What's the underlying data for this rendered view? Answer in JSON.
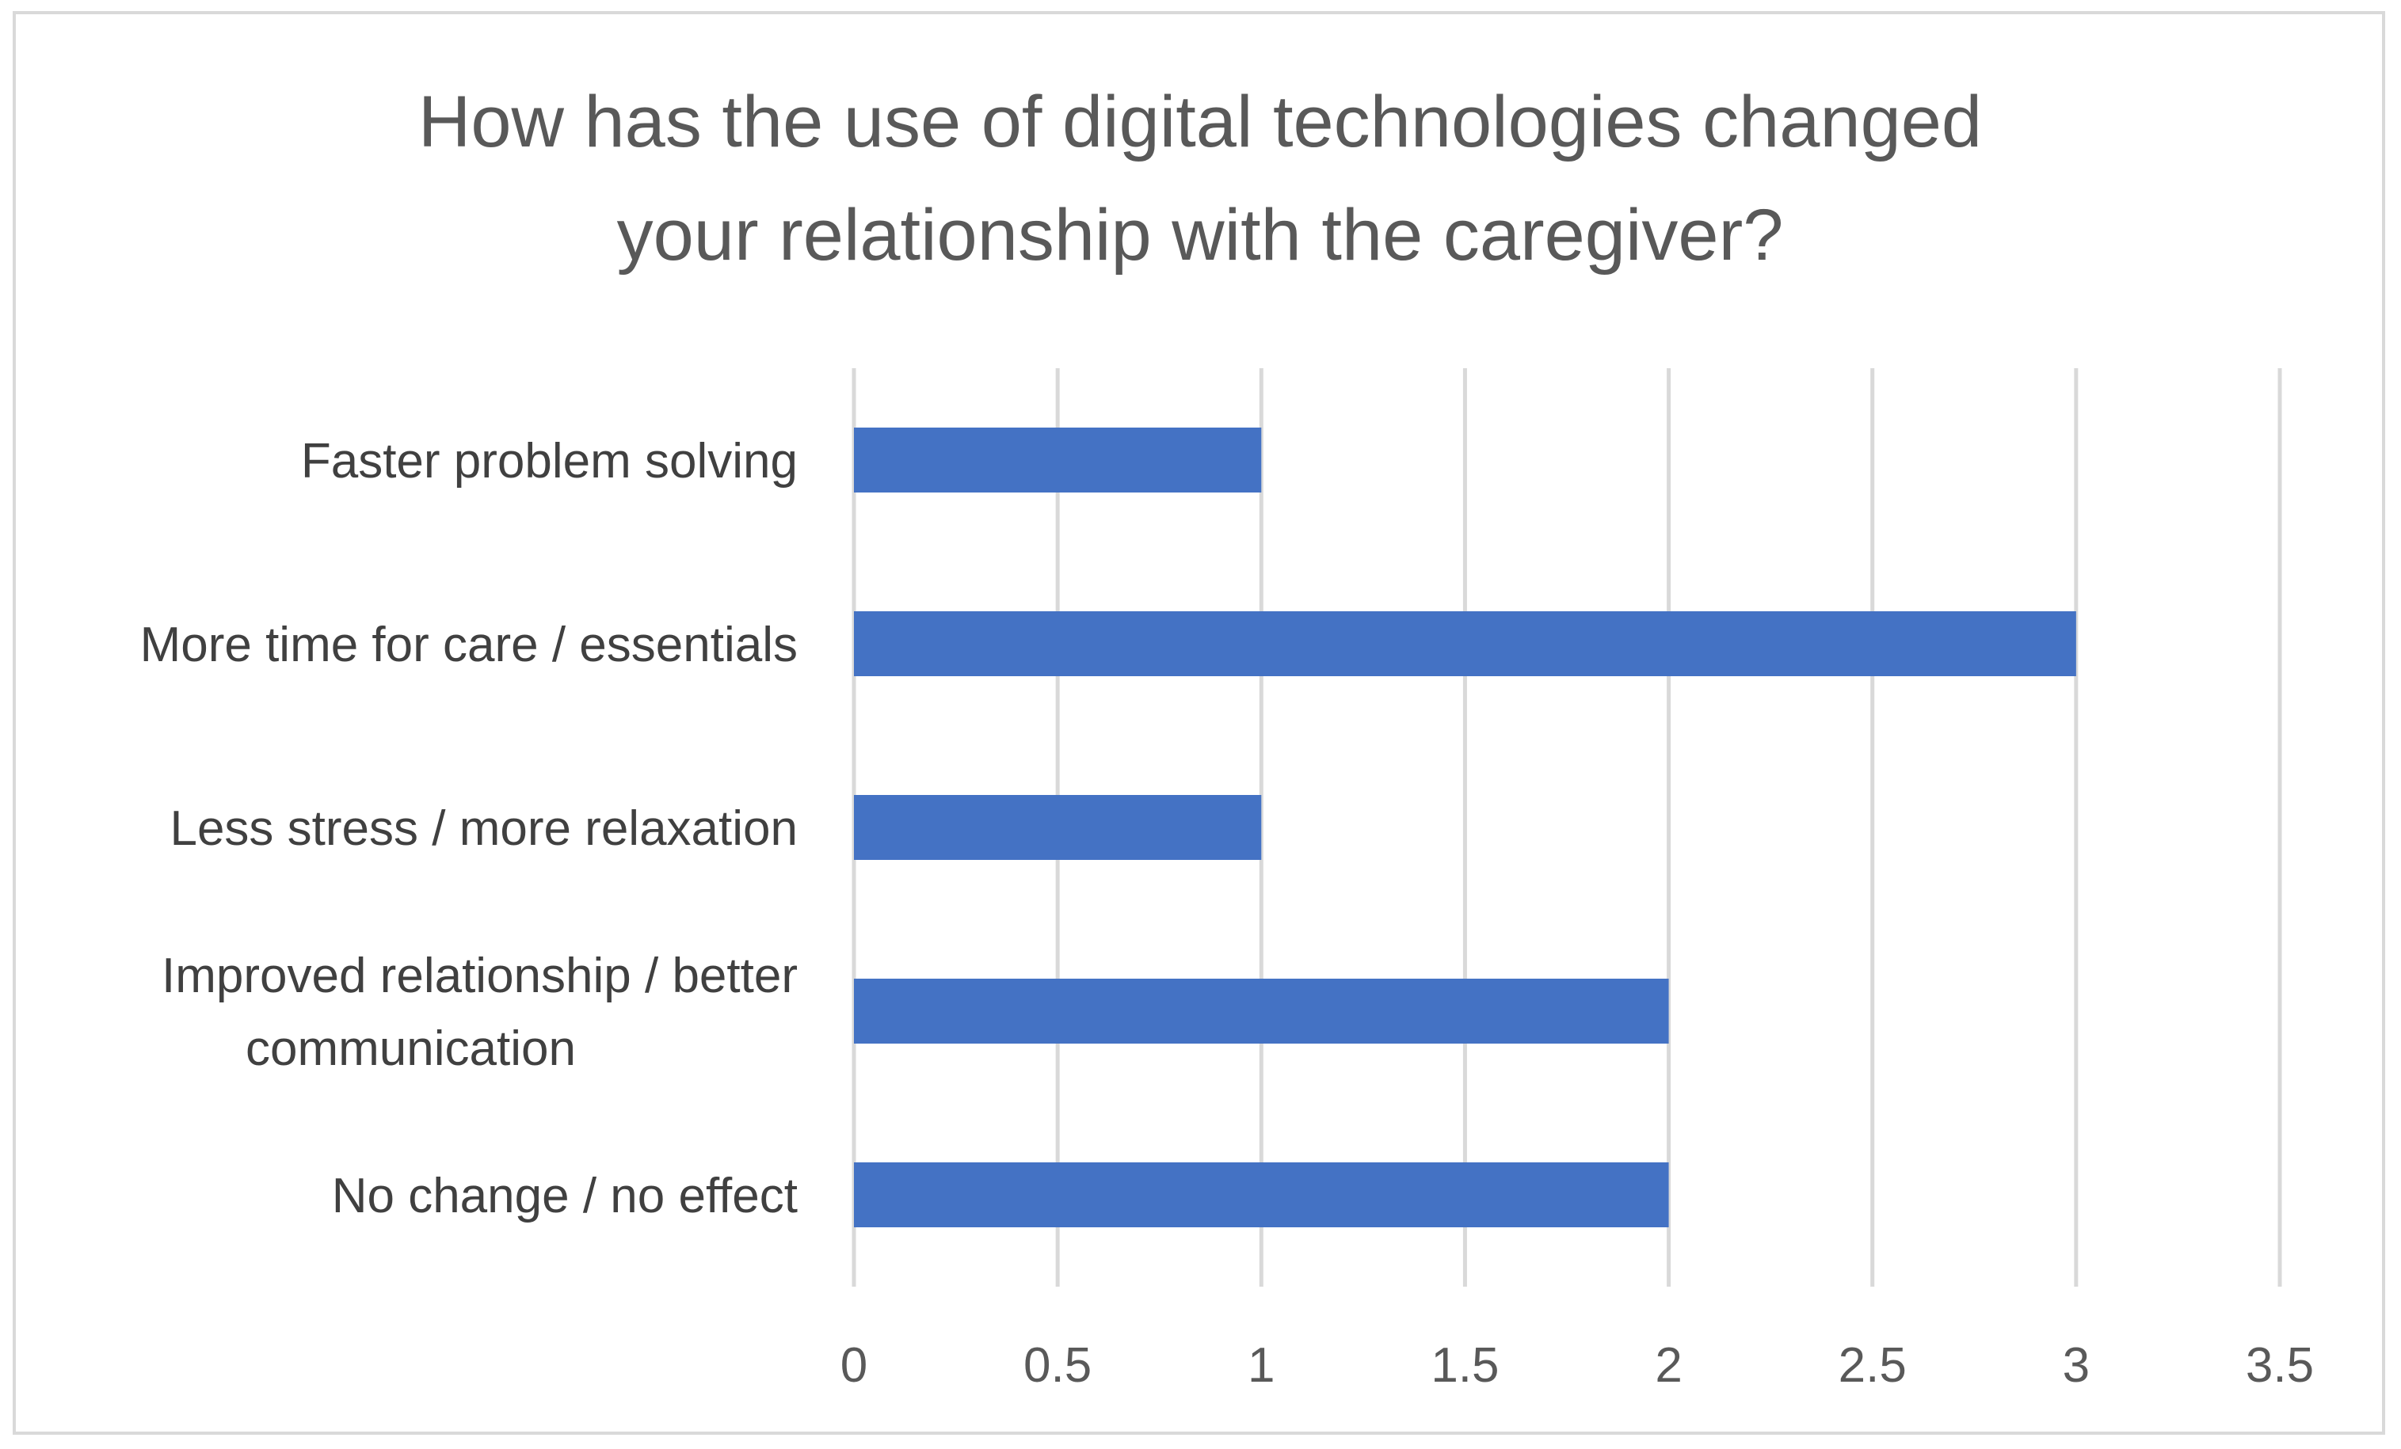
{
  "chart_data": {
    "type": "bar",
    "orientation": "horizontal",
    "title_lines": [
      "How has the use of digital technologies changed",
      "your relationship with the caregiver?"
    ],
    "categories": [
      [
        "Faster problem solving"
      ],
      [
        "More time for care / essentials"
      ],
      [
        "Less stress / more relaxation"
      ],
      [
        "Improved relationship / better",
        "communication"
      ],
      [
        "No change / no effect"
      ]
    ],
    "values": [
      1,
      3,
      1,
      2,
      2
    ],
    "xlim": [
      0,
      3.5
    ],
    "xticks": [
      "0",
      "0.5",
      "1",
      "1.5",
      "2",
      "2.5",
      "3",
      "3.5"
    ],
    "xlabel": "",
    "ylabel": "",
    "grid": "vertical",
    "legend": "none",
    "bar_color": "#4472C4"
  }
}
